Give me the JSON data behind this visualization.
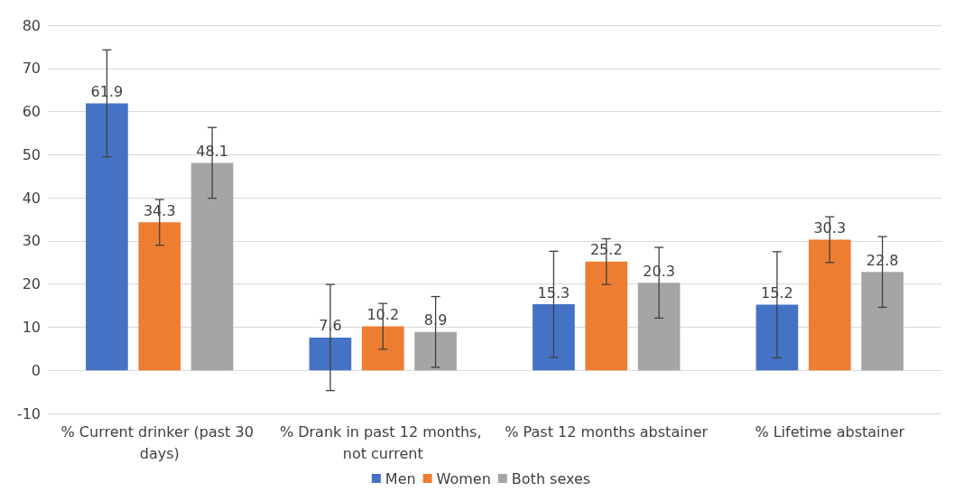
{
  "chart_data": {
    "type": "bar",
    "categories": [
      "% Current drinker (past 30 days)",
      "% Drank in past 12 months, not current",
      "% Past 12 months abstainer",
      "% Lifetime abstainer"
    ],
    "series": [
      {
        "name": "Men",
        "color": "#4472c4",
        "values": [
          61.9,
          7.6,
          15.3,
          15.2
        ],
        "errors": [
          12.4,
          12.3,
          12.3,
          12.3
        ]
      },
      {
        "name": "Women",
        "color": "#ed7d31",
        "values": [
          34.3,
          10.2,
          25.2,
          30.3
        ],
        "errors": [
          5.3,
          5.3,
          5.3,
          5.3
        ]
      },
      {
        "name": "Both sexes",
        "color": "#a5a5a5",
        "values": [
          48.1,
          8.9,
          20.3,
          22.8
        ],
        "errors": [
          8.2,
          8.2,
          8.2,
          8.2
        ]
      }
    ],
    "ylim": [
      -10,
      80
    ],
    "yticks": [
      -10,
      0,
      10,
      20,
      30,
      40,
      50,
      60,
      70,
      80
    ],
    "grid": "y",
    "legend": "bottom",
    "data_labels": true
  }
}
